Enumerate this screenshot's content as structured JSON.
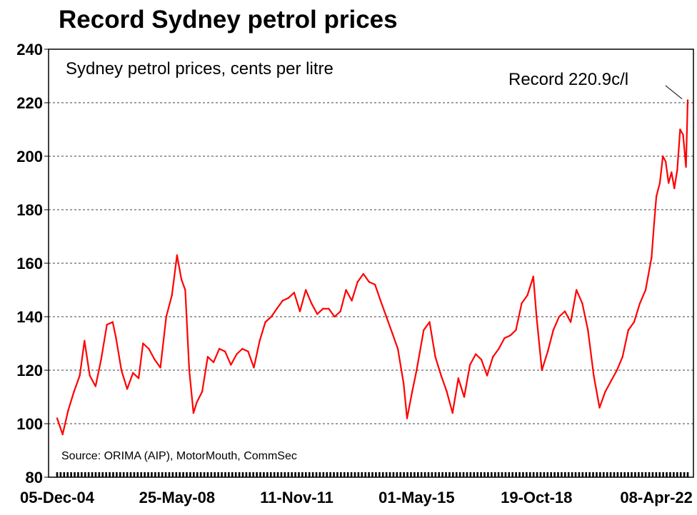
{
  "chart_data": {
    "type": "line",
    "title": "Record Sydney petrol prices",
    "subtitle": "Sydney petrol prices, cents per litre",
    "source": "Source: ORIMA (AIP), MotorMouth, CommSec",
    "annotation": "Record 220.9c/l",
    "xlabel": "",
    "ylabel": "",
    "ylim": [
      80,
      240
    ],
    "y_ticks": [
      "80",
      "100",
      "120",
      "140",
      "160",
      "180",
      "200",
      "220",
      "240"
    ],
    "x_ticks": [
      "05-Dec-04",
      "25-May-08",
      "11-Nov-11",
      "01-May-15",
      "19-Oct-18",
      "08-Apr-22"
    ],
    "x_range": [
      "2004-12-05",
      "2023-03-05"
    ],
    "grid": "horizontal dashed",
    "legend": "none",
    "line_color": "#ff0000",
    "series": [
      {
        "x": [
          "2004-12-05",
          "2005-02-01",
          "2005-04-01",
          "2005-06-01",
          "2005-08-01",
          "2005-09-20",
          "2005-11-15",
          "2006-01-15",
          "2006-03-15",
          "2006-05-15",
          "2006-07-15",
          "2006-08-20",
          "2006-10-15",
          "2006-12-15",
          "2007-02-15",
          "2007-04-15",
          "2007-06-01",
          "2007-08-01",
          "2007-10-01",
          "2007-12-01",
          "2008-02-01",
          "2008-04-01",
          "2008-05-25",
          "2008-07-10",
          "2008-08-20",
          "2008-10-01",
          "2008-11-15",
          "2008-12-20",
          "2009-02-15",
          "2009-04-15",
          "2009-06-15",
          "2009-08-15",
          "2009-10-15",
          "2009-12-15",
          "2010-02-15",
          "2010-04-15",
          "2010-06-15",
          "2010-08-15",
          "2010-10-15",
          "2010-12-15",
          "2011-02-15",
          "2011-04-15",
          "2011-06-15",
          "2011-08-15",
          "2011-10-15",
          "2011-12-15",
          "2012-02-15",
          "2012-04-15",
          "2012-06-15",
          "2012-08-15",
          "2012-10-15",
          "2012-12-15",
          "2013-02-15",
          "2013-04-15",
          "2013-06-15",
          "2013-08-15",
          "2013-10-15",
          "2013-12-15",
          "2014-02-15",
          "2014-04-15",
          "2014-06-15",
          "2014-08-15",
          "2014-10-15",
          "2014-12-15",
          "2015-01-20",
          "2015-03-15",
          "2015-05-01",
          "2015-07-15",
          "2015-09-15",
          "2015-11-15",
          "2016-01-15",
          "2016-03-15",
          "2016-05-15",
          "2016-07-15",
          "2016-09-15",
          "2016-11-15",
          "2017-01-15",
          "2017-03-15",
          "2017-05-15",
          "2017-07-15",
          "2017-09-15",
          "2017-11-15",
          "2018-01-15",
          "2018-03-15",
          "2018-05-15",
          "2018-07-15",
          "2018-09-15",
          "2018-10-19",
          "2018-12-15",
          "2019-02-15",
          "2019-04-15",
          "2019-06-15",
          "2019-08-15",
          "2019-10-15",
          "2019-12-15",
          "2020-02-15",
          "2020-04-15",
          "2020-06-15",
          "2020-08-15",
          "2020-10-15",
          "2020-12-15",
          "2021-02-15",
          "2021-04-15",
          "2021-06-15",
          "2021-08-15",
          "2021-10-15",
          "2021-12-15",
          "2022-02-15",
          "2022-03-15",
          "2022-04-08",
          "2022-05-15",
          "2022-06-15",
          "2022-07-15",
          "2022-08-15",
          "2022-09-15",
          "2022-10-15",
          "2022-11-15",
          "2022-12-15",
          "2023-01-15",
          "2023-02-15",
          "2023-03-05"
        ],
        "values": [
          102,
          96,
          105,
          112,
          118,
          131,
          118,
          114,
          124,
          137,
          138,
          132,
          120,
          113,
          119,
          117,
          130,
          128,
          124,
          121,
          140,
          148,
          163,
          154,
          150,
          120,
          104,
          108,
          112,
          125,
          123,
          128,
          127,
          122,
          126,
          128,
          127,
          121,
          131,
          138,
          140,
          143,
          146,
          147,
          149,
          142,
          150,
          145,
          141,
          143,
          143,
          140,
          142,
          150,
          146,
          153,
          156,
          153,
          152,
          146,
          140,
          134,
          128,
          115,
          102,
          112,
          120,
          135,
          138,
          125,
          118,
          112,
          104,
          117,
          110,
          122,
          126,
          124,
          118,
          125,
          128,
          132,
          133,
          135,
          145,
          148,
          155,
          140,
          120,
          127,
          135,
          140,
          142,
          138,
          150,
          145,
          135,
          118,
          106,
          112,
          116,
          120,
          125,
          135,
          138,
          145,
          150,
          162,
          175,
          185,
          190,
          200,
          198,
          190,
          194,
          188,
          195,
          210,
          208,
          196,
          220.9
        ]
      }
    ]
  }
}
